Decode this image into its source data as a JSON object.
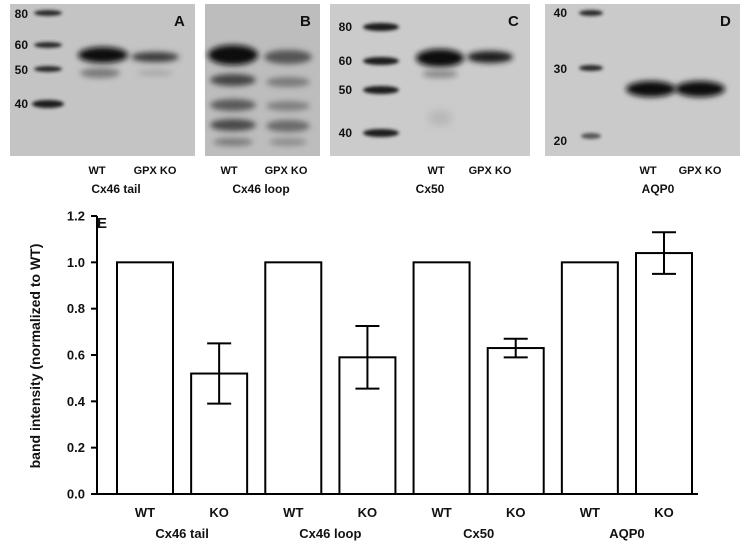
{
  "blots": [
    {
      "letter": "A",
      "markers": [
        "80",
        "60",
        "50",
        "40"
      ],
      "lanes": [
        "WT",
        "GPX KO"
      ],
      "caption": "Cx46 tail"
    },
    {
      "letter": "B",
      "markers": [],
      "lanes": [
        "WT",
        "GPX KO"
      ],
      "caption": "Cx46 loop"
    },
    {
      "letter": "C",
      "markers": [
        "80",
        "60",
        "50",
        "40"
      ],
      "lanes": [
        "WT",
        "GPX KO"
      ],
      "caption": "Cx50"
    },
    {
      "letter": "D",
      "markers": [
        "40",
        "30",
        "20"
      ],
      "lanes": [
        "WT",
        "GPX KO"
      ],
      "caption": "AQP0"
    }
  ],
  "chart_data": {
    "type": "bar",
    "panel_letter": "E",
    "title": "",
    "xlabel": "",
    "ylabel": "band intensity (normalized to WT)",
    "ylim": [
      0.0,
      1.2
    ],
    "yticks": [
      "0.0",
      "0.2",
      "0.4",
      "0.6",
      "0.8",
      "1.0",
      "1.2"
    ],
    "grid": false,
    "bar_fill": "#ffffff",
    "bar_stroke": "#000000",
    "groups": [
      "Cx46 tail",
      "Cx46 loop",
      "Cx50",
      "AQP0"
    ],
    "categories": [
      "WT",
      "KO",
      "WT",
      "KO",
      "WT",
      "KO",
      "WT",
      "KO"
    ],
    "values": [
      1.0,
      0.52,
      1.0,
      0.59,
      1.0,
      0.63,
      1.0,
      1.04
    ],
    "errors": [
      0,
      0.13,
      0,
      0.135,
      0,
      0.04,
      0,
      0.09
    ]
  }
}
